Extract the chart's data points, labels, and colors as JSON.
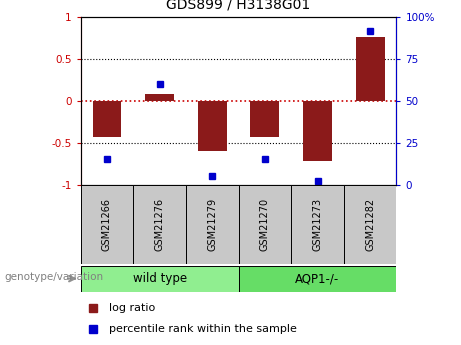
{
  "title": "GDS899 / H3138G01",
  "samples": [
    "GSM21266",
    "GSM21276",
    "GSM21279",
    "GSM21270",
    "GSM21273",
    "GSM21282"
  ],
  "log_ratios": [
    -0.43,
    0.08,
    -0.6,
    -0.43,
    -0.72,
    0.76
  ],
  "percentile_ranks": [
    15,
    60,
    5,
    15,
    2,
    92
  ],
  "groups": [
    {
      "label": "wild type",
      "indices": [
        0,
        1,
        2
      ],
      "color": "#90ee90"
    },
    {
      "label": "AQP1-/-",
      "indices": [
        3,
        4,
        5
      ],
      "color": "#66dd66"
    }
  ],
  "ylim_left": [
    -1.0,
    1.0
  ],
  "bar_color": "#8b1a1a",
  "dot_color": "#0000cc",
  "hline_color": "#cc0000",
  "dotline_color": "#000000",
  "sample_box_color": "#c8c8c8",
  "legend_log_ratio_label": "log ratio",
  "legend_percentile_label": "percentile rank within the sample",
  "genotype_label": "genotype/variation",
  "left_yticks": [
    -1,
    -0.5,
    0,
    0.5,
    1
  ],
  "left_yticklabels": [
    "-1",
    "-0.5",
    "0",
    "0.5",
    "1"
  ],
  "right_axis_ticks_pct": [
    0,
    25,
    50,
    75,
    100
  ],
  "right_axis_labels": [
    "0",
    "25",
    "50",
    "75",
    "100%"
  ]
}
